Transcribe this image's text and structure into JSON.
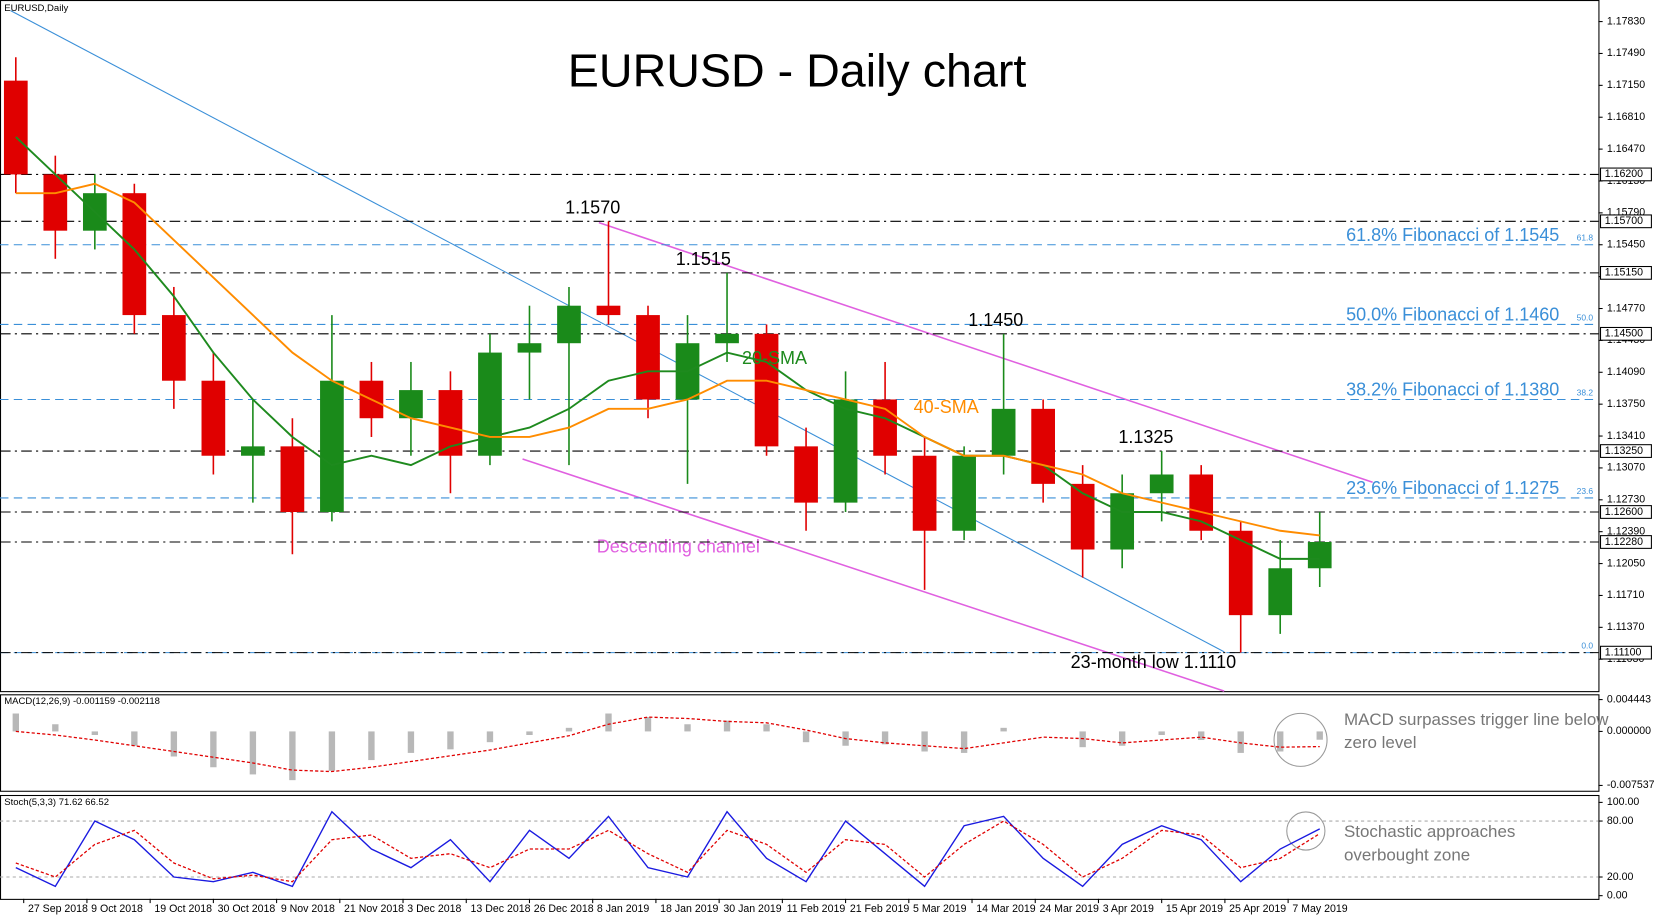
{
  "header": "EURUSD,Daily",
  "chart_data": [
    {
      "type": "candlestick",
      "title": "EURUSD - Daily chart",
      "x": [
        2,
        7,
        12,
        17,
        22,
        27,
        32,
        37,
        42,
        47,
        52,
        57,
        62,
        67,
        72,
        77,
        82,
        87,
        92,
        97,
        102,
        107,
        112,
        117,
        122,
        127,
        132,
        137,
        142,
        147,
        152,
        157,
        162,
        167
      ],
      "open": [
        1.172,
        1.162,
        1.156,
        1.16,
        1.147,
        1.14,
        1.132,
        1.133,
        1.126,
        1.14,
        1.136,
        1.139,
        1.132,
        1.143,
        1.144,
        1.148,
        1.147,
        1.138,
        1.144,
        1.145,
        1.133,
        1.127,
        1.138,
        1.132,
        1.124,
        1.132,
        1.137,
        1.129,
        1.122,
        1.128,
        1.13,
        1.124,
        1.115,
        1.12
      ],
      "high": [
        1.1745,
        1.164,
        1.162,
        1.161,
        1.15,
        1.143,
        1.138,
        1.136,
        1.147,
        1.142,
        1.142,
        1.141,
        1.145,
        1.148,
        1.15,
        1.157,
        1.148,
        1.147,
        1.1515,
        1.146,
        1.135,
        1.141,
        1.142,
        1.134,
        1.133,
        1.145,
        1.138,
        1.131,
        1.13,
        1.1325,
        1.131,
        1.125,
        1.123,
        1.126
      ],
      "low": [
        1.16,
        1.153,
        1.154,
        1.145,
        1.137,
        1.13,
        1.127,
        1.1215,
        1.125,
        1.134,
        1.132,
        1.128,
        1.131,
        1.138,
        1.131,
        1.146,
        1.136,
        1.129,
        1.142,
        1.132,
        1.124,
        1.126,
        1.13,
        1.1177,
        1.123,
        1.13,
        1.127,
        1.119,
        1.12,
        1.125,
        1.123,
        1.111,
        1.113,
        1.118
      ],
      "close": [
        1.162,
        1.156,
        1.16,
        1.147,
        1.14,
        1.132,
        1.133,
        1.126,
        1.14,
        1.136,
        1.139,
        1.132,
        1.143,
        1.144,
        1.148,
        1.147,
        1.138,
        1.144,
        1.145,
        1.133,
        1.127,
        1.138,
        1.132,
        1.124,
        1.132,
        1.137,
        1.129,
        1.122,
        1.128,
        1.13,
        1.124,
        1.115,
        1.12,
        1.1228
      ],
      "series": [
        {
          "name": "20-SMA",
          "color": "#1e8a1e",
          "values": [
            1.166,
            1.162,
            1.158,
            1.154,
            1.149,
            1.143,
            1.138,
            1.134,
            1.131,
            1.132,
            1.131,
            1.133,
            1.134,
            1.135,
            1.137,
            1.14,
            1.141,
            1.141,
            1.143,
            1.142,
            1.139,
            1.137,
            1.136,
            1.134,
            1.132,
            1.132,
            1.131,
            1.128,
            1.126,
            1.126,
            1.125,
            1.123,
            1.121,
            1.121
          ]
        },
        {
          "name": "40-SMA",
          "color": "#ff8c00",
          "values": [
            1.16,
            1.16,
            1.161,
            1.159,
            1.155,
            1.151,
            1.147,
            1.143,
            1.14,
            1.138,
            1.136,
            1.135,
            1.134,
            1.134,
            1.135,
            1.137,
            1.137,
            1.138,
            1.14,
            1.14,
            1.139,
            1.138,
            1.137,
            1.134,
            1.132,
            1.132,
            1.131,
            1.13,
            1.128,
            1.127,
            1.126,
            1.125,
            1.124,
            1.1235
          ]
        }
      ],
      "up_color": "#1a8a1a",
      "down_color": "#e00000",
      "xlim": [
        0,
        169
      ],
      "xticks": [
        {
          "value": 3,
          "label": "27 Sep 2018"
        },
        {
          "value": 11,
          "label": "9 Oct 2018"
        },
        {
          "value": 19,
          "label": "19 Oct 2018"
        },
        {
          "value": 27,
          "label": "30 Oct 2018"
        },
        {
          "value": 35,
          "label": "9 Nov 2018"
        },
        {
          "value": 43,
          "label": "21 Nov 2018"
        },
        {
          "value": 51,
          "label": "3 Dec 2018"
        },
        {
          "value": 59,
          "label": "13 Dec 2018"
        },
        {
          "value": 67,
          "label": "26 Dec 2018"
        },
        {
          "value": 75,
          "label": "8 Jan 2019"
        },
        {
          "value": 83,
          "label": "18 Jan 2019"
        },
        {
          "value": 91,
          "label": "30 Jan 2019"
        },
        {
          "value": 99,
          "label": "11 Feb 2019"
        },
        {
          "value": 107,
          "label": "21 Feb 2019"
        },
        {
          "value": 115,
          "label": "5 Mar 2019"
        },
        {
          "value": 123,
          "label": "14 Mar 2019"
        },
        {
          "value": 131,
          "label": "24 Mar 2019"
        },
        {
          "value": 139,
          "label": "3 Apr 2019"
        },
        {
          "value": 147,
          "label": "15 Apr 2019"
        },
        {
          "value": 155,
          "label": "25 Apr 2019"
        },
        {
          "value": 163,
          "label": "7 May 2019"
        }
      ],
      "ylim": [
        1.1069,
        1.1806
      ],
      "yticks": [
        {
          "value": 1.1783,
          "label": "1.17830"
        },
        {
          "value": 1.1749,
          "label": "1.17490"
        },
        {
          "value": 1.1715,
          "label": "1.17150"
        },
        {
          "value": 1.1681,
          "label": "1.16810"
        },
        {
          "value": 1.1647,
          "label": "1.16470"
        },
        {
          "value": 1.1613,
          "label": "1.16130"
        },
        {
          "value": 1.1579,
          "label": "1.15790"
        },
        {
          "value": 1.1545,
          "label": "1.15450"
        },
        {
          "value": 1.1511,
          "label": "1.15110"
        },
        {
          "value": 1.1477,
          "label": "1.14770"
        },
        {
          "value": 1.1443,
          "label": "1.14430"
        },
        {
          "value": 1.1409,
          "label": "1.14090"
        },
        {
          "value": 1.1375,
          "label": "1.13750"
        },
        {
          "value": 1.1341,
          "label": "1.13410"
        },
        {
          "value": 1.1307,
          "label": "1.13070"
        },
        {
          "value": 1.1273,
          "label": "1.12730"
        },
        {
          "value": 1.1239,
          "label": "1.12390"
        },
        {
          "value": 1.1205,
          "label": "1.12050"
        },
        {
          "value": 1.1171,
          "label": "1.11710"
        },
        {
          "value": 1.1137,
          "label": "1.11370"
        },
        {
          "value": 1.1103,
          "label": "1.11030"
        }
      ],
      "levels": [
        {
          "value": 1.162,
          "label": "1.16200"
        },
        {
          "value": 1.157,
          "label": "1.15700"
        },
        {
          "value": 1.1515,
          "label": "1.15150"
        },
        {
          "value": 1.145,
          "label": "1.14500"
        },
        {
          "value": 1.1325,
          "label": "1.13250"
        },
        {
          "value": 1.126,
          "label": "1.12600"
        },
        {
          "value": 1.1228,
          "label": "1.12280"
        },
        {
          "value": 1.111,
          "label": "1.11100"
        }
      ],
      "fibonacci": [
        {
          "value": 1.1545,
          "label": "61.8% Fibonacci of 1.1545",
          "tag": "61.8"
        },
        {
          "value": 1.146,
          "label": "50.0% Fibonacci of 1.1460",
          "tag": "50.0"
        },
        {
          "value": 1.138,
          "label": "38.2% Fibonacci of 1.1380",
          "tag": "38.2"
        },
        {
          "value": 1.1275,
          "label": "23.6% Fibonacci of 1.1275",
          "tag": "23.6"
        },
        {
          "value": 1.111,
          "label": "",
          "tag": "0.0"
        }
      ],
      "annotations": [
        {
          "x": 75,
          "value": 1.157,
          "label": "1.1570"
        },
        {
          "x": 89,
          "value": 1.1515,
          "label": "1.1515"
        },
        {
          "x": 126,
          "value": 1.145,
          "label": "1.1450"
        },
        {
          "x": 145,
          "value": 1.1325,
          "label": "1.1325"
        },
        {
          "x": 154,
          "value": 1.111,
          "label": "23-month low 1.1110"
        }
      ],
      "channel_label": "Descending channel"
    },
    {
      "type": "macd",
      "header": "MACD(12,26,9) -0.001159 -0.002118",
      "histogram": [
        0.0025,
        0.001,
        -0.0005,
        -0.002,
        -0.0035,
        -0.005,
        -0.006,
        -0.0068,
        -0.0055,
        -0.004,
        -0.003,
        -0.0025,
        -0.0015,
        -0.0005,
        0.0005,
        0.0025,
        0.002,
        0.001,
        0.0015,
        0.001,
        -0.0015,
        -0.002,
        -0.0018,
        -0.0028,
        -0.003,
        0.0005,
        0.0,
        -0.0022,
        -0.002,
        -0.0005,
        -0.0012,
        -0.003,
        -0.0028,
        -0.001159
      ],
      "signal": [
        0.0,
        -0.0005,
        -0.0012,
        -0.002,
        -0.0028,
        -0.0036,
        -0.0044,
        -0.0054,
        -0.0056,
        -0.005,
        -0.0042,
        -0.0034,
        -0.0026,
        -0.0016,
        -0.0006,
        0.001,
        0.002,
        0.0018,
        0.0014,
        0.0012,
        0.0002,
        -0.001,
        -0.0016,
        -0.002,
        -0.0024,
        -0.0016,
        -0.0008,
        -0.001,
        -0.0016,
        -0.0012,
        -0.0008,
        -0.0016,
        -0.0022,
        -0.002118
      ],
      "ylim": [
        -0.008277,
        0.005182
      ],
      "yticks": [
        {
          "value": 0.004443,
          "label": "0.004443"
        },
        {
          "value": 0,
          "label": "0.000000"
        },
        {
          "value": -0.007537,
          "label": "-0.007537"
        }
      ],
      "note": "MACD surpasses trigger line below zero level"
    },
    {
      "type": "stochastic",
      "header": "Stoch(5,3,3) 71.62 66.52",
      "k": [
        30,
        10,
        80,
        60,
        20,
        15,
        25,
        10,
        90,
        50,
        30,
        60,
        15,
        70,
        40,
        85,
        30,
        20,
        90,
        40,
        15,
        80,
        45,
        10,
        75,
        85,
        40,
        10,
        55,
        75,
        60,
        15,
        50,
        71.62
      ],
      "d": [
        35,
        20,
        55,
        70,
        35,
        18,
        22,
        15,
        60,
        65,
        40,
        45,
        30,
        50,
        50,
        70,
        45,
        25,
        70,
        55,
        25,
        60,
        55,
        20,
        55,
        80,
        55,
        20,
        40,
        70,
        65,
        30,
        40,
        66.52
      ],
      "ylim": [
        -3.41,
        107.95
      ],
      "yticks": [
        {
          "value": 100,
          "label": "100.00"
        },
        {
          "value": 80,
          "label": "80.00"
        },
        {
          "value": 20,
          "label": "20.00"
        },
        {
          "value": 0,
          "label": "0.00"
        }
      ],
      "note": "Stochastic approaches overbought zone"
    }
  ]
}
